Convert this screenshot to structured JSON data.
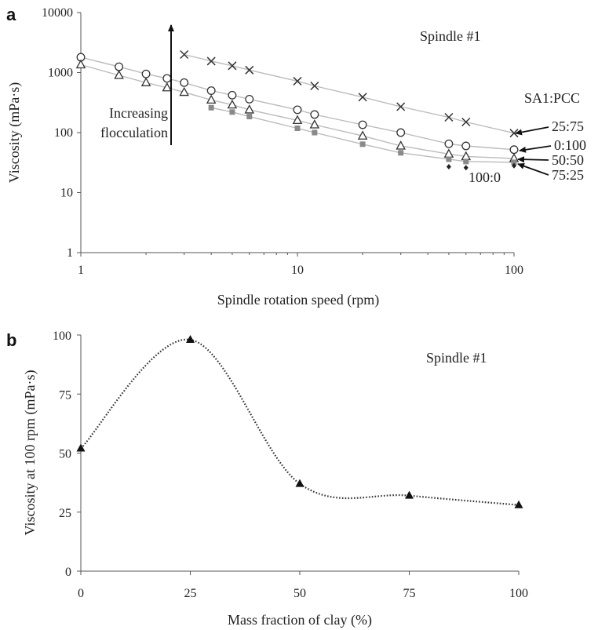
{
  "chart_data": [
    {
      "panel": "a",
      "type": "scatter",
      "x_scale": "log",
      "y_scale": "log",
      "title": "Spindle #1",
      "xlabel": "Spindle  rotation speed (rpm)",
      "ylabel": "Viscosity (mPa·s)",
      "xlim": [
        1,
        100
      ],
      "ylim": [
        1,
        10000
      ],
      "x_ticks": [
        "1",
        "10",
        "100"
      ],
      "y_ticks": [
        "1",
        "10",
        "100",
        "1000",
        "10000"
      ],
      "legend_title": "SA1:PCC",
      "annotation": [
        "Increasing",
        "flocculation"
      ],
      "series": [
        {
          "name": "25:75",
          "marker": "x",
          "x": [
            3,
            4,
            5,
            6,
            10,
            12,
            20,
            30,
            50,
            60,
            100
          ],
          "y": [
            2000,
            1550,
            1300,
            1100,
            720,
            600,
            390,
            270,
            180,
            150,
            98
          ]
        },
        {
          "name": "0:100",
          "marker": "o",
          "x": [
            1,
            1.5,
            2,
            2.5,
            3,
            4,
            5,
            6,
            10,
            12,
            20,
            30,
            50,
            60,
            100
          ],
          "y": [
            1800,
            1250,
            950,
            800,
            680,
            500,
            420,
            360,
            240,
            200,
            135,
            100,
            65,
            60,
            52
          ]
        },
        {
          "name": "50:50",
          "marker": "triangle",
          "x": [
            1,
            1.5,
            2,
            2.5,
            3,
            4,
            5,
            6,
            10,
            12,
            20,
            30,
            50,
            60,
            100
          ],
          "y": [
            1350,
            900,
            680,
            560,
            470,
            350,
            290,
            240,
            160,
            135,
            88,
            60,
            44,
            40,
            37
          ]
        },
        {
          "name": "75:25",
          "marker": "square",
          "x": [
            4,
            5,
            6,
            10,
            12,
            20,
            30,
            50,
            60,
            100
          ],
          "y": [
            260,
            220,
            185,
            118,
            100,
            64,
            46,
            36,
            33,
            32
          ]
        },
        {
          "name": "100:0",
          "marker": "diamond",
          "x": [
            50,
            60,
            100
          ],
          "y": [
            27,
            26,
            28
          ]
        }
      ]
    },
    {
      "panel": "b",
      "type": "line",
      "title": "Spindle #1",
      "xlabel": "Mass fraction of clay (%)",
      "ylabel": "Viscosity at 100 rpm (mPa·s)",
      "xlim": [
        0,
        100
      ],
      "ylim": [
        0,
        100
      ],
      "x_ticks": [
        "0",
        "25",
        "50",
        "75",
        "100"
      ],
      "y_ticks": [
        "0",
        "25",
        "50",
        "75",
        "100"
      ],
      "x": [
        0,
        25,
        50,
        75,
        100
      ],
      "y": [
        52,
        98,
        37,
        32,
        28
      ],
      "marker": "triangle",
      "line_style": "dotted"
    }
  ],
  "colors": {
    "axis": "#555555",
    "marker": "#333333",
    "fit_line": "#bbbbbb",
    "square_marker": "#8a8a8a",
    "arrow": "#111111"
  }
}
